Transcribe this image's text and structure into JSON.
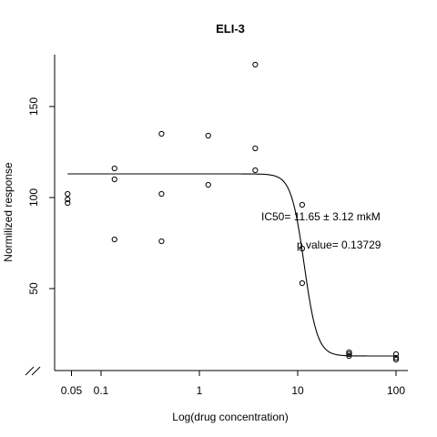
{
  "chart_data": {
    "type": "scatter",
    "title": "ELI-3",
    "xlabel": "Log(drug concentration)",
    "ylabel": "Normilized response",
    "x_scale": "log",
    "xlim": [
      0.04,
      150
    ],
    "ylim": [
      8,
      180
    ],
    "x_ticks": [
      0.05,
      0.1,
      1,
      10,
      100
    ],
    "x_tick_labels": [
      "0.05",
      "0.1",
      "1",
      "10",
      "100"
    ],
    "y_ticks": [
      50,
      100,
      150
    ],
    "y_tick_labels": [
      "50",
      "100",
      "150"
    ],
    "axis_break": true,
    "grid": false,
    "points": [
      {
        "x": 0.0457,
        "y": 102
      },
      {
        "x": 0.0457,
        "y": 99
      },
      {
        "x": 0.0457,
        "y": 97
      },
      {
        "x": 0.137,
        "y": 116
      },
      {
        "x": 0.137,
        "y": 110
      },
      {
        "x": 0.137,
        "y": 77
      },
      {
        "x": 0.412,
        "y": 135
      },
      {
        "x": 0.412,
        "y": 102
      },
      {
        "x": 0.412,
        "y": 76
      },
      {
        "x": 1.23,
        "y": 134
      },
      {
        "x": 1.23,
        "y": 107
      },
      {
        "x": 3.7,
        "y": 173
      },
      {
        "x": 3.7,
        "y": 127
      },
      {
        "x": 3.7,
        "y": 115
      },
      {
        "x": 11.1,
        "y": 96
      },
      {
        "x": 11.1,
        "y": 72
      },
      {
        "x": 11.1,
        "y": 53
      },
      {
        "x": 33.3,
        "y": 15
      },
      {
        "x": 33.3,
        "y": 14
      },
      {
        "x": 33.3,
        "y": 13
      },
      {
        "x": 100,
        "y": 14
      },
      {
        "x": 100,
        "y": 12
      },
      {
        "x": 100,
        "y": 11
      }
    ],
    "fit_curve": {
      "model": "four-parameter logistic",
      "top": 113,
      "bottom": 13,
      "ic50": 11.65,
      "hill": 6.5
    },
    "annotations": [
      {
        "text": "IC50= 11.65 ± 3.12 mkM"
      },
      {
        "text": "p value= 0.13729"
      }
    ]
  }
}
